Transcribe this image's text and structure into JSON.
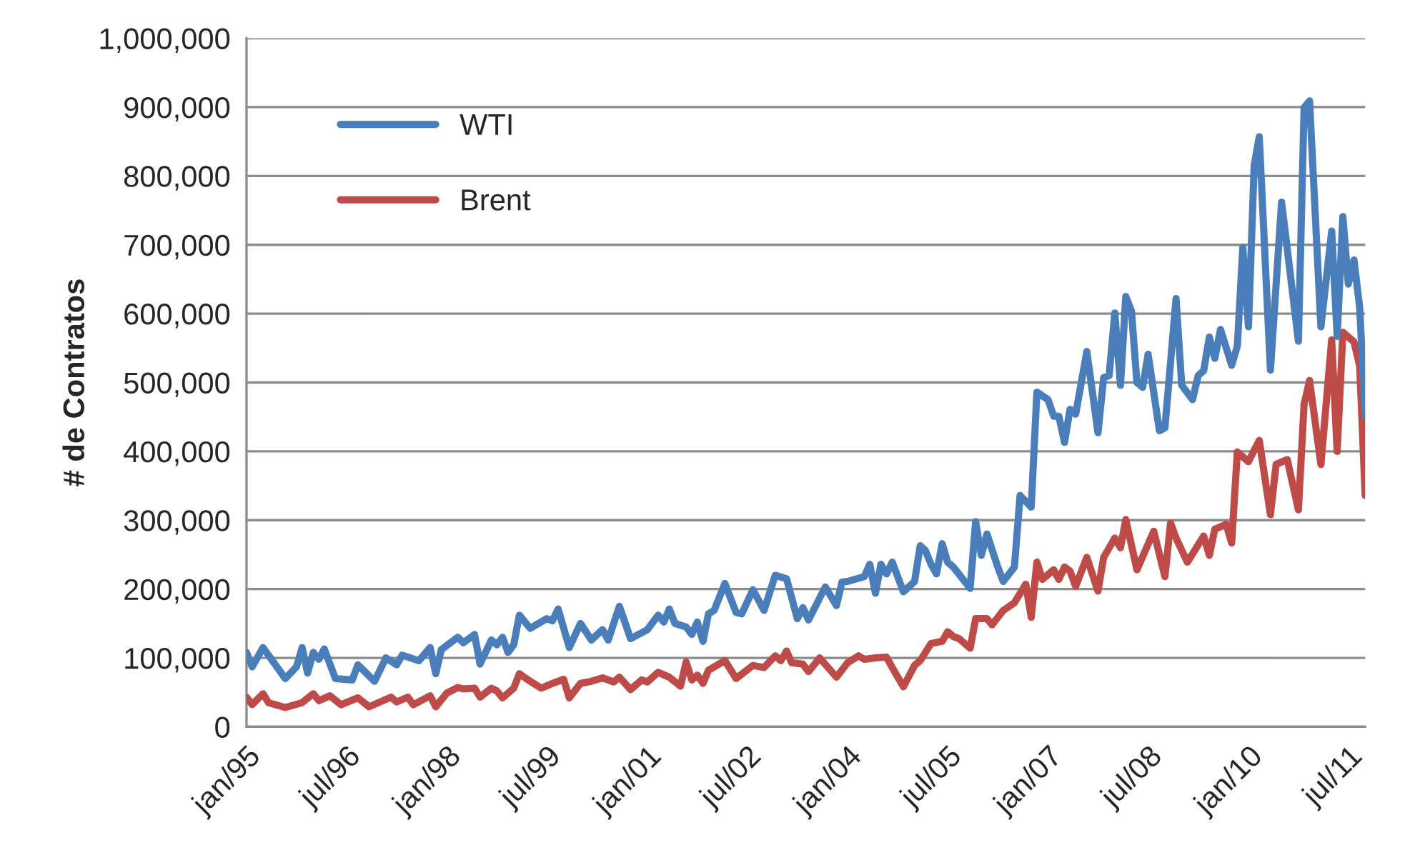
{
  "chart_data": {
    "type": "line",
    "ylabel": "# de Contratos",
    "xlim": [
      "1995-01",
      "2011-10"
    ],
    "xticks": [
      {
        "value": "1995-01",
        "label": "jan/95"
      },
      {
        "value": "1996-07",
        "label": "jul/96"
      },
      {
        "value": "1998-01",
        "label": "jan/98"
      },
      {
        "value": "1999-07",
        "label": "jul/99"
      },
      {
        "value": "2001-01",
        "label": "jan/01"
      },
      {
        "value": "2002-07",
        "label": "jul/02"
      },
      {
        "value": "2004-01",
        "label": "jan/04"
      },
      {
        "value": "2005-07",
        "label": "jul/05"
      },
      {
        "value": "2007-01",
        "label": "jan/07"
      },
      {
        "value": "2008-07",
        "label": "jul/08"
      },
      {
        "value": "2010-01",
        "label": "jan/10"
      },
      {
        "value": "2011-07",
        "label": "jul/11"
      }
    ],
    "ylim": [
      0,
      1000000
    ],
    "yticks": [
      {
        "value": 0,
        "label": "0"
      },
      {
        "value": 100000,
        "label": "100,000"
      },
      {
        "value": 200000,
        "label": "200,000"
      },
      {
        "value": 300000,
        "label": "300,000"
      },
      {
        "value": 400000,
        "label": "400,000"
      },
      {
        "value": 500000,
        "label": "500,000"
      },
      {
        "value": 600000,
        "label": "600,000"
      },
      {
        "value": 700000,
        "label": "700,000"
      },
      {
        "value": 800000,
        "label": "800,000"
      },
      {
        "value": 900000,
        "label": "900,000"
      },
      {
        "value": 1000000,
        "label": "1,000,000"
      }
    ],
    "grid": "y",
    "legend": "top left",
    "line_style": "solid",
    "marker": "none",
    "series": [
      {
        "name": "WTI",
        "color": "#4a7ebb",
        "x": [
          "1995-01",
          "1995-02",
          "1995-04",
          "1995-08",
          "1995-10",
          "1995-11",
          "1995-12",
          "1996-01",
          "1996-02",
          "1996-03",
          "1996-05",
          "1996-08",
          "1996-09",
          "1996-12",
          "1997-02",
          "1997-04",
          "1997-05",
          "1997-08",
          "1997-10",
          "1997-11",
          "1997-12",
          "1998-03",
          "1998-04",
          "1998-06",
          "1998-07",
          "1998-09",
          "1998-10",
          "1998-11",
          "1998-12",
          "1999-01",
          "1999-02",
          "1999-04",
          "1999-07",
          "1999-08",
          "1999-09",
          "1999-11",
          "2000-01",
          "2000-03",
          "2000-05",
          "2000-06",
          "2000-08",
          "2000-10",
          "2001-01",
          "2001-03",
          "2001-04",
          "2001-05",
          "2001-06",
          "2001-08",
          "2001-09",
          "2001-10",
          "2001-11",
          "2001-12",
          "2002-01",
          "2002-03",
          "2002-05",
          "2002-06",
          "2002-08",
          "2002-10",
          "2002-12",
          "2003-02",
          "2003-04",
          "2003-05",
          "2003-06",
          "2003-09",
          "2003-11",
          "2003-12",
          "2004-01",
          "2004-04",
          "2004-05",
          "2004-06",
          "2004-07",
          "2004-08",
          "2004-09",
          "2004-11",
          "2005-01",
          "2005-02",
          "2005-03",
          "2005-04",
          "2005-05",
          "2005-06",
          "2005-07",
          "2005-08",
          "2005-11",
          "2005-12",
          "2006-01",
          "2006-02",
          "2006-04",
          "2006-05",
          "2006-07",
          "2006-08",
          "2006-10",
          "2006-11",
          "2007-01",
          "2007-02",
          "2007-03",
          "2007-04",
          "2007-05",
          "2007-06",
          "2007-08",
          "2007-10",
          "2007-11",
          "2007-12",
          "2008-01",
          "2008-02",
          "2008-03",
          "2008-04",
          "2008-05",
          "2008-06",
          "2008-07",
          "2008-09",
          "2008-10",
          "2008-12",
          "2009-01",
          "2009-03",
          "2009-04",
          "2009-05",
          "2009-06",
          "2009-07",
          "2009-08",
          "2009-10",
          "2009-11",
          "2009-12",
          "2010-01",
          "2010-02",
          "2010-03",
          "2010-05",
          "2010-07",
          "2010-10",
          "2010-11",
          "2010-12",
          "2011-02",
          "2011-04",
          "2011-05",
          "2011-06",
          "2011-07",
          "2011-08",
          "2011-09",
          "2011-10"
        ],
        "values": [
          108000,
          87000,
          115000,
          70000,
          87000,
          115000,
          78000,
          108000,
          98000,
          113000,
          70000,
          68000,
          90000,
          66000,
          100000,
          90000,
          104000,
          96000,
          115000,
          77000,
          112000,
          130000,
          122000,
          134000,
          91000,
          126000,
          119000,
          130000,
          108000,
          119000,
          162000,
          143000,
          157000,
          154000,
          171000,
          115000,
          150000,
          126000,
          141000,
          126000,
          175000,
          128000,
          141000,
          162000,
          152000,
          171000,
          150000,
          145000,
          134000,
          152000,
          124000,
          164000,
          169000,
          208000,
          166000,
          164000,
          199000,
          169000,
          220000,
          215000,
          157000,
          173000,
          155000,
          203000,
          176000,
          210000,
          211000,
          218000,
          236000,
          194000,
          236000,
          222000,
          239000,
          196000,
          211000,
          263000,
          256000,
          236000,
          222000,
          266000,
          239000,
          232000,
          201000,
          298000,
          249000,
          280000,
          232000,
          211000,
          232000,
          336000,
          319000,
          486000,
          475000,
          451000,
          451000,
          413000,
          461000,
          454000,
          545000,
          427000,
          507000,
          510000,
          601000,
          496000,
          625000,
          604000,
          500000,
          493000,
          541000,
          430000,
          434000,
          622000,
          496000,
          475000,
          510000,
          517000,
          566000,
          535000,
          577000,
          525000,
          553000,
          696000,
          581000,
          815000,
          857000,
          518000,
          762000,
          560000,
          899000,
          909000,
          581000,
          720000,
          567000,
          741000,
          643000,
          678000,
          609000,
          451000
        ]
      },
      {
        "name": "Brent",
        "color": "#be4b48",
        "x": [
          "1995-01",
          "1995-02",
          "1995-04",
          "1995-05",
          "1995-08",
          "1995-11",
          "1996-01",
          "1996-02",
          "1996-04",
          "1996-06",
          "1996-09",
          "1996-11",
          "1997-03",
          "1997-04",
          "1997-06",
          "1997-07",
          "1997-10",
          "1997-11",
          "1998-01",
          "1998-03",
          "1998-04",
          "1998-06",
          "1998-07",
          "1998-09",
          "1998-10",
          "1998-11",
          "1999-01",
          "1999-02",
          "1999-04",
          "1999-06",
          "1999-08",
          "1999-10",
          "1999-11",
          "2000-01",
          "2000-03",
          "2000-05",
          "2000-07",
          "2000-08",
          "2000-10",
          "2000-12",
          "2001-01",
          "2001-03",
          "2001-05",
          "2001-07",
          "2001-08",
          "2001-09",
          "2001-10",
          "2001-11",
          "2001-12",
          "2002-03",
          "2002-05",
          "2002-08",
          "2002-10",
          "2002-12",
          "2003-01",
          "2003-02",
          "2003-03",
          "2003-05",
          "2003-06",
          "2003-08",
          "2003-11",
          "2004-01",
          "2004-03",
          "2004-04",
          "2004-06",
          "2004-08",
          "2004-09",
          "2004-11",
          "2005-01",
          "2005-02",
          "2005-04",
          "2005-06",
          "2005-07",
          "2005-08",
          "2005-09",
          "2005-11",
          "2005-12",
          "2006-02",
          "2006-03",
          "2006-05",
          "2006-07",
          "2006-09",
          "2006-10",
          "2006-11",
          "2006-12",
          "2007-02",
          "2007-03",
          "2007-04",
          "2007-05",
          "2007-06",
          "2007-08",
          "2007-10",
          "2007-11",
          "2008-01",
          "2008-02",
          "2008-03",
          "2008-05",
          "2008-08",
          "2008-10",
          "2008-11",
          "2008-12",
          "2009-02",
          "2009-05",
          "2009-06",
          "2009-07",
          "2009-09",
          "2009-10",
          "2009-11",
          "2010-01",
          "2010-03",
          "2010-05",
          "2010-06",
          "2010-08",
          "2010-10",
          "2010-11",
          "2010-12",
          "2011-02",
          "2011-04",
          "2011-05",
          "2011-06",
          "2011-08",
          "2011-09",
          "2011-10"
        ],
        "values": [
          43000,
          32000,
          48000,
          35000,
          28000,
          35000,
          48000,
          38000,
          45000,
          32000,
          42000,
          29000,
          43000,
          36000,
          43000,
          32000,
          45000,
          29000,
          49000,
          57000,
          55000,
          56000,
          43000,
          56000,
          52000,
          42000,
          56000,
          77000,
          66000,
          56000,
          63000,
          69000,
          42000,
          63000,
          66000,
          71000,
          65000,
          72000,
          54000,
          68000,
          65000,
          79000,
          72000,
          59000,
          94000,
          68000,
          75000,
          63000,
          82000,
          96000,
          70000,
          89000,
          86000,
          103000,
          96000,
          110000,
          93000,
          91000,
          80000,
          100000,
          72000,
          93000,
          103000,
          98000,
          100000,
          101000,
          86000,
          58000,
          89000,
          96000,
          121000,
          124000,
          138000,
          131000,
          128000,
          114000,
          157000,
          157000,
          148000,
          169000,
          180000,
          207000,
          159000,
          239000,
          214000,
          228000,
          214000,
          232000,
          226000,
          204000,
          246000,
          197000,
          246000,
          274000,
          260000,
          301000,
          228000,
          284000,
          218000,
          296000,
          274000,
          239000,
          277000,
          249000,
          287000,
          294000,
          267000,
          399000,
          385000,
          416000,
          308000,
          381000,
          388000,
          315000,
          468000,
          503000,
          381000,
          562000,
          400000,
          573000,
          559000,
          524000,
          336000
        ]
      }
    ]
  }
}
